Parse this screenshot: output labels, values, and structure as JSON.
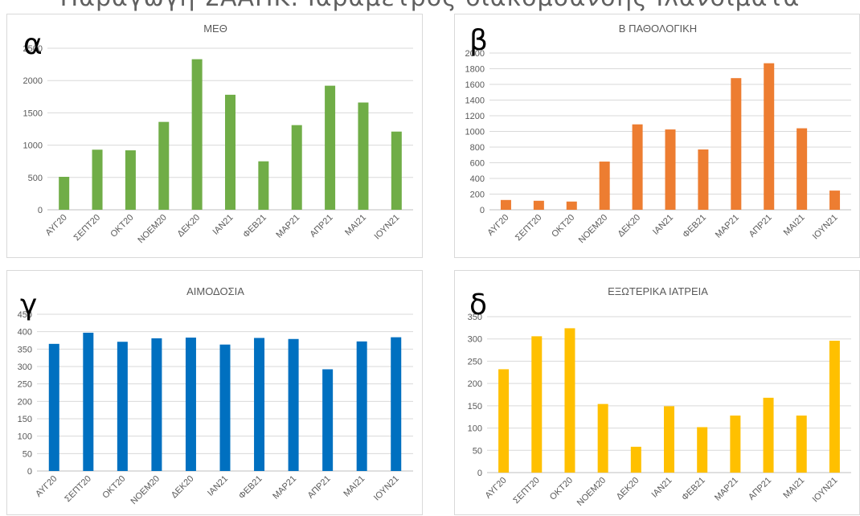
{
  "heading": "Παραγωγή ΣΑΑΠΚ: Ιαραμετρος διακομσανσης Ιλανσιματα",
  "panels": [
    {
      "letter": "α",
      "title": "ΜΕΘ"
    },
    {
      "letter": "β",
      "title": "Β ΠΑΘΟΛΟΓΙΚΗ"
    },
    {
      "letter": "γ",
      "title": "ΑΙΜΟΔΟΣΙΑ"
    },
    {
      "letter": "δ",
      "title": "ΕΞΩΤΕΡΙΚΑ ΙΑΤΡΕΙΑ"
    }
  ],
  "chart_data": [
    {
      "type": "bar",
      "title": "ΜΕΘ",
      "categories": [
        "ΑΥΓ20",
        "ΣΕΠΤ20",
        "ΟΚΤ20",
        "ΝΟΕΜ20",
        "ΔΕΚ20",
        "ΙΑΝ21",
        "ΦΕΒ21",
        "ΜΑΡ21",
        "ΑΠΡ21",
        "ΜΑΙ21",
        "ΙΟΥΝ21"
      ],
      "values": [
        510,
        930,
        920,
        1360,
        2330,
        1780,
        750,
        1310,
        1920,
        1660,
        1210
      ],
      "ylim": [
        0,
        2500
      ],
      "yticks": [
        0,
        500,
        1000,
        1500,
        2000,
        2500
      ],
      "color": "#70ad47",
      "grid": true
    },
    {
      "type": "bar",
      "title": "Β ΠΑΘΟΛΟΓΙΚΗ",
      "categories": [
        "ΑΥΓ20",
        "ΣΕΠΤ20",
        "ΟΚΤ20",
        "ΝΟΕΜ20",
        "ΔΕΚ20",
        "ΙΑΝ21",
        "ΦΕΒ21",
        "ΜΑΡ21",
        "ΑΠΡ21",
        "ΜΑΙ21",
        "ΙΟΥΝ21"
      ],
      "values": [
        125,
        115,
        105,
        615,
        1090,
        1025,
        770,
        1680,
        1870,
        1040,
        245
      ],
      "ylim": [
        0,
        2000
      ],
      "yticks": [
        0,
        200,
        400,
        600,
        800,
        1000,
        1200,
        1400,
        1600,
        1800,
        2000
      ],
      "color": "#ed7d31",
      "grid": true
    },
    {
      "type": "bar",
      "title": "ΑΙΜΟΔΟΣΙΑ",
      "categories": [
        "ΑΥΓ20",
        "ΣΕΠΤ20",
        "ΟΚΤ20",
        "ΝΟΕΜ20",
        "ΔΕΚ20",
        "ΙΑΝ21",
        "ΦΕΒ21",
        "ΜΑΡ21",
        "ΑΠΡ21",
        "ΜΑΙ21",
        "ΙΟΥΝ21"
      ],
      "values": [
        365,
        397,
        371,
        381,
        383,
        363,
        382,
        379,
        292,
        372,
        384
      ],
      "ylim": [
        0,
        450
      ],
      "yticks": [
        0,
        50,
        100,
        150,
        200,
        250,
        300,
        350,
        400,
        450
      ],
      "color": "#0070c0",
      "grid": true
    },
    {
      "type": "bar",
      "title": "ΕΞΩΤΕΡΙΚΑ ΙΑΤΡΕΙΑ",
      "categories": [
        "ΑΥΓ20",
        "ΣΕΠΤ20",
        "ΟΚΤ20",
        "ΝΟΕΜ20",
        "ΔΕΚ20",
        "ΙΑΝ21",
        "ΦΕΒ21",
        "ΜΑΡ21",
        "ΑΠΡ21",
        "ΜΑΙ21",
        "ΙΟΥΝ21"
      ],
      "values": [
        232,
        306,
        324,
        154,
        58,
        149,
        102,
        128,
        168,
        128,
        296
      ],
      "ylim": [
        0,
        350
      ],
      "yticks": [
        0,
        50,
        100,
        150,
        200,
        250,
        300,
        350
      ],
      "color": "#ffc000",
      "grid": true
    }
  ]
}
